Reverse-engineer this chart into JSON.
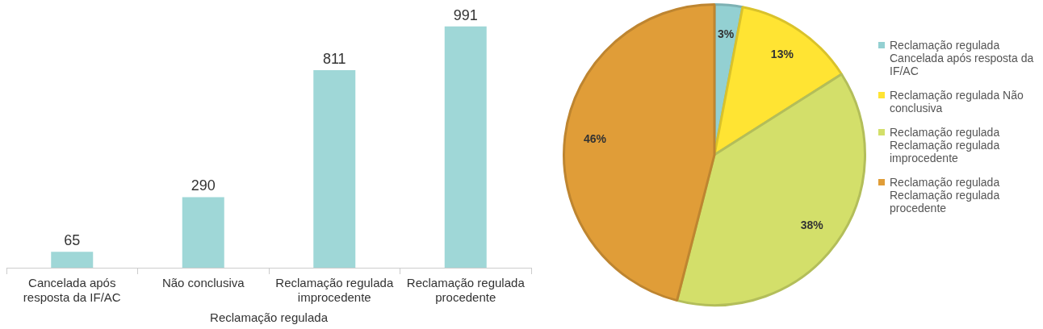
{
  "chart_data": [
    {
      "type": "bar",
      "xlabel": "Reclamação regulada",
      "categories": [
        "Cancelada após resposta da IF/AC",
        "Não conclusiva",
        "Reclamação regulada improcedente",
        "Reclamação regulada procedente"
      ],
      "values": [
        65,
        290,
        811,
        991
      ],
      "color": "#9fd7d7",
      "data_labels": true,
      "grid": false,
      "legend": false
    },
    {
      "type": "pie",
      "categories": [
        "Reclamação regulada Cancelada após resposta da IF/AC",
        "Reclamação regulada Não conclusiva",
        "Reclamação regulada Reclamação regulada improcedente",
        "Reclamação regulada Reclamação regulada procedente"
      ],
      "values": [
        3,
        13,
        38,
        46
      ],
      "value_labels": [
        "3%",
        "13%",
        "38%",
        "46%"
      ],
      "colors": [
        "#93d0d2",
        "#ffe433",
        "#d3df6a",
        "#e09d38"
      ],
      "legend": "right"
    }
  ]
}
